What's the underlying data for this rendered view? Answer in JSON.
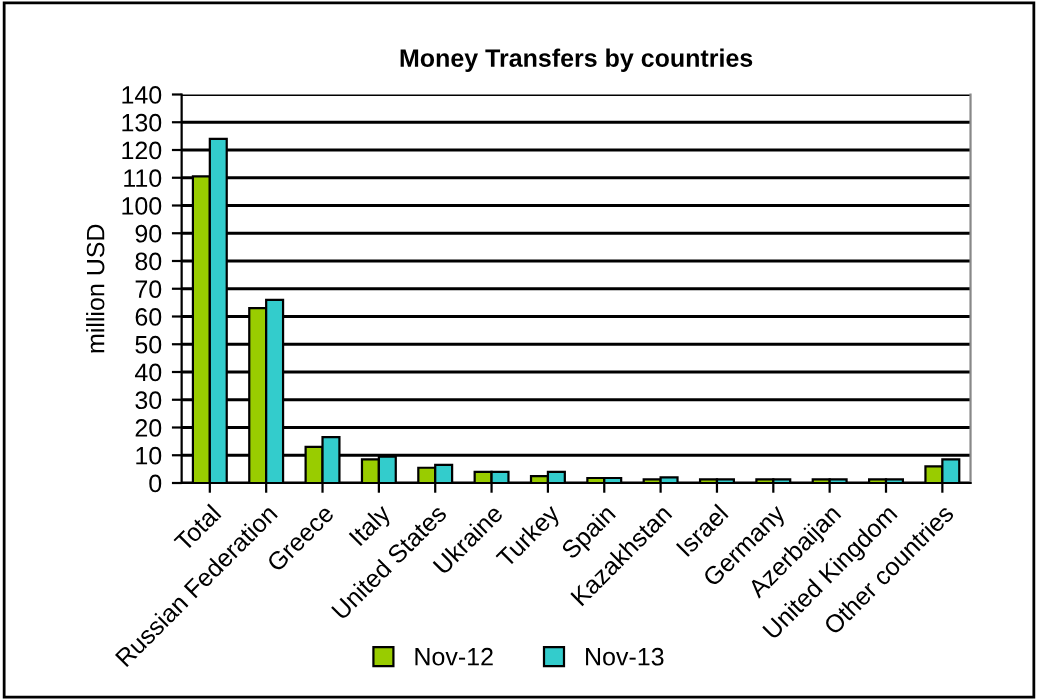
{
  "chart_data": {
    "type": "bar",
    "title": "Money Transfers by countries",
    "ylabel": "million USD",
    "categories": [
      "Total",
      "Russian Federation",
      "Greece",
      "Italy",
      "United States",
      "Ukraine",
      "Turkey",
      "Spain",
      "Kazakhstan",
      "Israel",
      "Germany",
      "Azerbaijan",
      "United Kingdom",
      "Other countries"
    ],
    "series": [
      {
        "name": "Nov-12",
        "color": "#99cc00",
        "values": [
          110.5,
          63,
          13,
          8.5,
          5.5,
          4,
          2.5,
          1.8,
          1.3,
          1.3,
          1.3,
          1.3,
          1.3,
          6
        ]
      },
      {
        "name": "Nov-13",
        "color": "#33cccc",
        "values": [
          124,
          66,
          16.5,
          9.5,
          6.5,
          4,
          4,
          1.8,
          2,
          1.3,
          1.3,
          1.3,
          1.3,
          8.5
        ]
      }
    ],
    "ylim": [
      0,
      140
    ],
    "yticks": [
      0,
      10,
      20,
      30,
      40,
      50,
      60,
      70,
      80,
      90,
      100,
      110,
      120,
      130,
      140
    ],
    "grid": "y",
    "legend": "bottom"
  }
}
